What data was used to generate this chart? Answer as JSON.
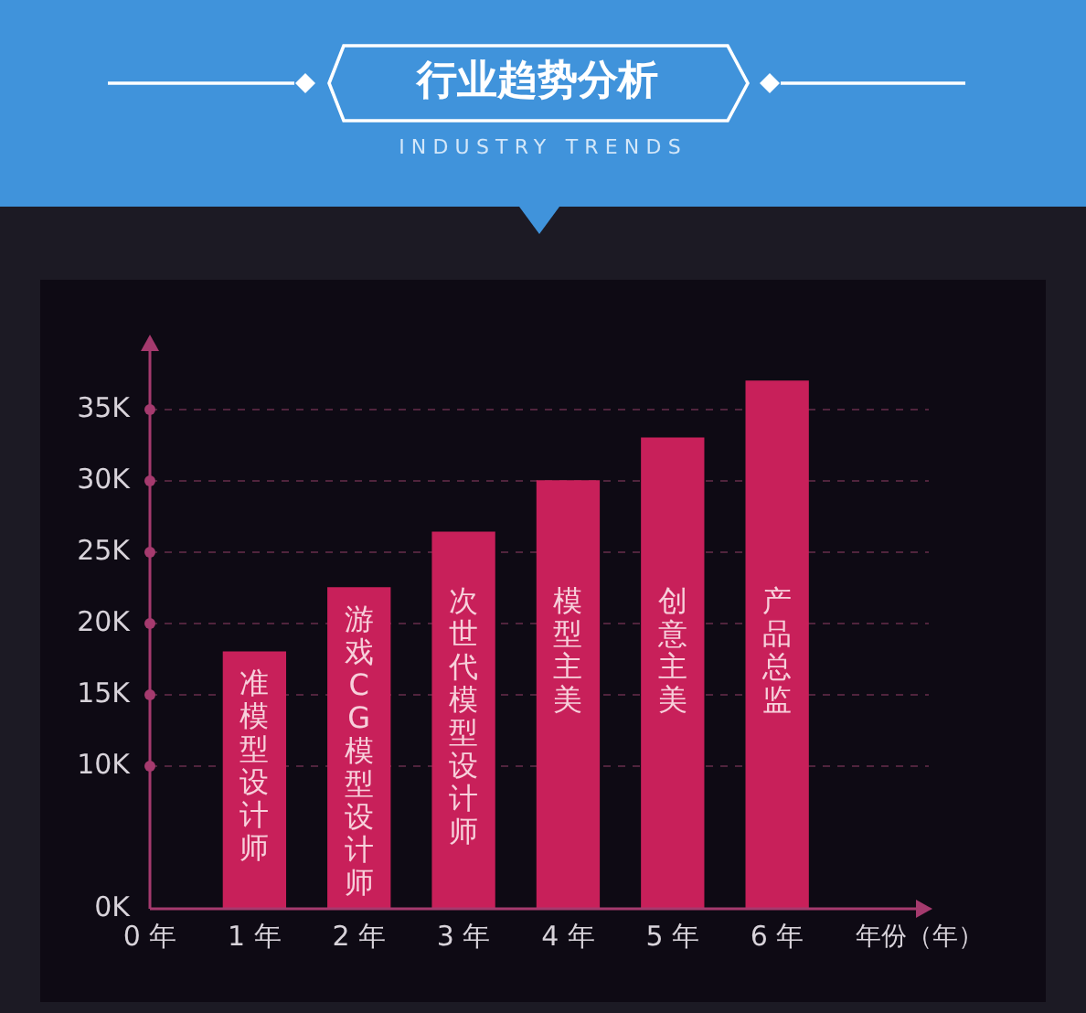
{
  "chart_data": {
    "type": "bar",
    "title": "行业趋势分析",
    "subtitle": "INDUSTRY TRENDS",
    "xlabel": "年份（年）",
    "x": [
      1,
      2,
      3,
      4,
      5,
      6
    ],
    "values": [
      18000,
      22500,
      26400,
      30000,
      33000,
      37000
    ],
    "color": "#c8205a",
    "xlim": [
      0,
      7.45
    ],
    "xticks": [
      {
        "value": 0,
        "label": "0 年"
      },
      {
        "value": 1,
        "label": "1 年"
      },
      {
        "value": 2,
        "label": "2 年"
      },
      {
        "value": 3,
        "label": "3 年"
      },
      {
        "value": 4,
        "label": "4 年"
      },
      {
        "value": 5,
        "label": "5 年"
      },
      {
        "value": 6,
        "label": "6 年"
      }
    ],
    "ylim": [
      0,
      40000
    ],
    "yticks": [
      {
        "value": 0,
        "label": "0K"
      },
      {
        "value": 10000,
        "label": "10K"
      },
      {
        "value": 15000,
        "label": "15K"
      },
      {
        "value": 20000,
        "label": "20K"
      },
      {
        "value": 25000,
        "label": "25K"
      },
      {
        "value": 30000,
        "label": "30K"
      },
      {
        "value": 35000,
        "label": "35K"
      }
    ],
    "grid": "y",
    "annotations": [
      "准模型设计师",
      "游戏CG模型设计师",
      "次世代模型设计师",
      "模型主美",
      "创意主美",
      "产品总监"
    ]
  }
}
